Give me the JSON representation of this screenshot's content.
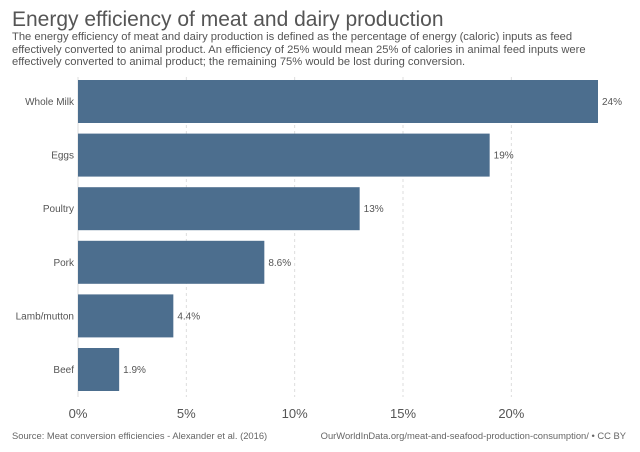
{
  "title": "Energy efficiency of meat and dairy production",
  "subtitle": "The energy efficiency of meat and dairy production is defined as the percentage of energy (caloric) inputs as feed effectively converted to animal product. An efficiency of 25% would mean 25% of calories in animal feed inputs were effectively converted to animal product; the remaining 75% would be lost during conversion.",
  "source": "Source: Meat conversion efficiencies - Alexander et al. (2016)",
  "credit": "OurWorldInData.org/meat-and-seafood-production-consumption/ • CC BY",
  "colors": {
    "bar": "#4c6e8e",
    "grid": "#dddddd",
    "text": "#555555"
  },
  "chart_data": {
    "type": "bar",
    "orientation": "horizontal",
    "categories": [
      "Whole Milk",
      "Eggs",
      "Poultry",
      "Pork",
      "Lamb/mutton",
      "Beef"
    ],
    "values": [
      24,
      19,
      13,
      8.6,
      4.4,
      1.9
    ],
    "value_labels": [
      "24%",
      "19%",
      "13%",
      "8.6%",
      "4.4%",
      "1.9%"
    ],
    "x_ticks": [
      0,
      5,
      10,
      15,
      20
    ],
    "x_tick_labels": [
      "0%",
      "5%",
      "10%",
      "15%",
      "20%"
    ],
    "xlim": [
      0,
      24
    ],
    "grid": "vertical dashed",
    "unit": "%"
  }
}
